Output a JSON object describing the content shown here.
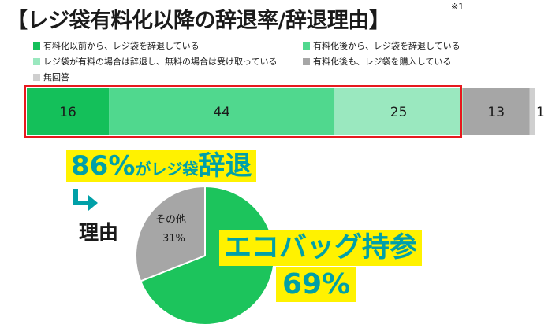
{
  "title": "【レジ袋有料化以降の辞退率/辞退理由】",
  "footnote": "※1",
  "chart_data": [
    {
      "type": "bar",
      "orientation": "horizontal-stacked-100",
      "series": [
        {
          "name": "有料化以前から、レジ袋を辞退している",
          "value": 16,
          "color": "#14c05a"
        },
        {
          "name": "有料化後から、レジ袋を辞退している",
          "value": 44,
          "color": "#50d88e"
        },
        {
          "name": "レジ袋が有料の場合は辞退し、無料の場合は受け取っている",
          "value": 25,
          "color": "#9ae8bf"
        },
        {
          "name": "有料化後も、レジ袋を購入している",
          "value": 13,
          "color": "#a6a6a6"
        },
        {
          "name": "無回答",
          "value": 1,
          "color": "#cfcfcf"
        }
      ],
      "legend_placement": "top"
    },
    {
      "type": "pie",
      "slices": [
        {
          "name": "エコバッグ持参",
          "value": 69,
          "color": "#1cc45c"
        },
        {
          "name": "その他",
          "value": 31,
          "color": "#a6a6a6"
        }
      ]
    }
  ],
  "labels": {
    "other_name": "その他",
    "other_pct": "31%",
    "headline_pct": "86%",
    "headline_mid": "が",
    "headline_tail": "レジ袋",
    "headline_end": "辞退",
    "reason": "理由",
    "callout": "エコバッグ持参",
    "callout_pct": "69%"
  }
}
